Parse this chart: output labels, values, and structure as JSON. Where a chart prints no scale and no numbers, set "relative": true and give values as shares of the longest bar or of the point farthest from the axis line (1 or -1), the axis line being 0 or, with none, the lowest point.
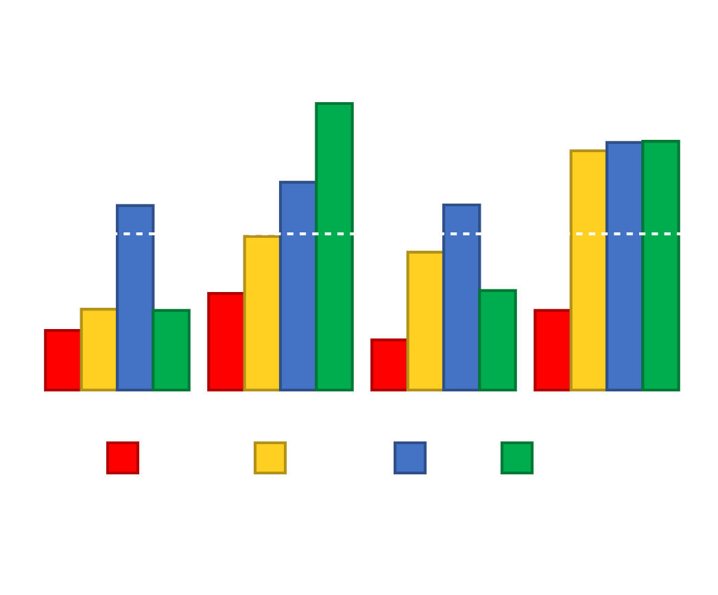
{
  "chart_data": {
    "type": "bar",
    "relative": true,
    "categories": [
      null,
      null,
      null,
      null
    ],
    "series": [
      {
        "color": "#ff0000",
        "values": [
          0.208,
          0.337,
          0.175,
          0.278
        ]
      },
      {
        "color": "#ffd022",
        "values": [
          0.282,
          0.536,
          0.481,
          0.835
        ]
      },
      {
        "color": "#4472c4",
        "values": [
          0.644,
          0.725,
          0.646,
          0.864
        ]
      },
      {
        "color": "#00ad4e",
        "values": [
          0.278,
          1.0,
          0.347,
          0.868
        ]
      }
    ],
    "ref_lines": [
      {
        "axis": "y",
        "value": 0.545,
        "color": "#ffffff",
        "line_style": "dashed"
      }
    ],
    "grid": false
  }
}
